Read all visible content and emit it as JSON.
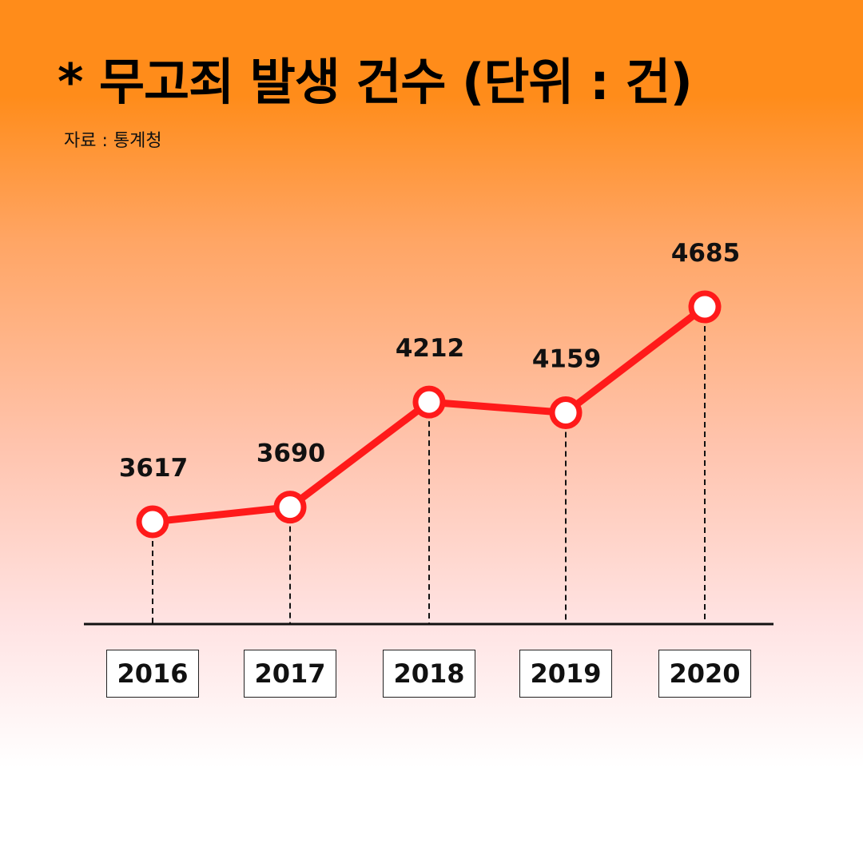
{
  "title": "* 무고죄 발생 건수 (단위 : 건)",
  "source": "자료 : 통계청",
  "colors": {
    "line": "#ff1a1a",
    "marker_fill": "#ffffff",
    "gradient_top": "#ff8c1a",
    "gradient_bottom": "#ffffff",
    "text": "#111111"
  },
  "chart_data": {
    "type": "line",
    "title": "* 무고죄 발생 건수 (단위 : 건)",
    "categories": [
      "2016",
      "2017",
      "2018",
      "2019",
      "2020"
    ],
    "values": [
      3617,
      3690,
      4212,
      4159,
      4685
    ],
    "data_labels": [
      "3617",
      "3690",
      "4212",
      "4159",
      "4685"
    ],
    "xlabel": "",
    "ylabel": "",
    "grid": false,
    "legend": "none"
  }
}
